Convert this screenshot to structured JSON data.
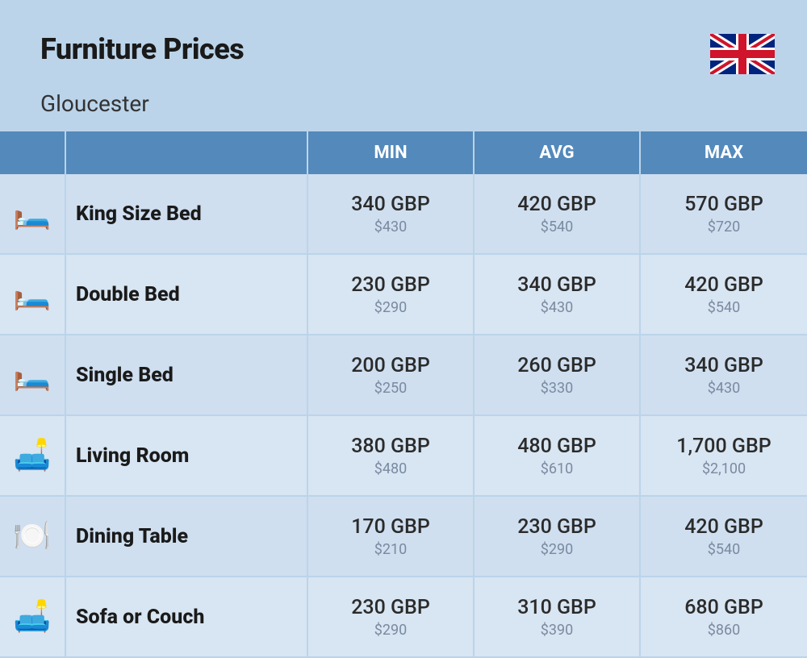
{
  "header": {
    "title": "Furniture Prices",
    "subtitle": "Gloucester"
  },
  "flag": {
    "name": "uk-flag",
    "bg": "#00247d",
    "white": "#ffffff",
    "red": "#cf142b"
  },
  "table": {
    "columns": [
      "MIN",
      "AVG",
      "MAX"
    ],
    "header_bg": "#5489bb",
    "header_text": "#ffffff",
    "row_bg_odd": "#cfdff0",
    "row_bg_even": "#d8e5f2",
    "border_color": "#bbd4ea",
    "primary_color": "#2b2b2b",
    "secondary_color": "#7a8aa0",
    "rows": [
      {
        "icon": "🛏️",
        "name": "King Size Bed",
        "min": {
          "p": "340 GBP",
          "s": "$430"
        },
        "avg": {
          "p": "420 GBP",
          "s": "$540"
        },
        "max": {
          "p": "570 GBP",
          "s": "$720"
        }
      },
      {
        "icon": "🛏️",
        "name": "Double Bed",
        "min": {
          "p": "230 GBP",
          "s": "$290"
        },
        "avg": {
          "p": "340 GBP",
          "s": "$430"
        },
        "max": {
          "p": "420 GBP",
          "s": "$540"
        }
      },
      {
        "icon": "🛏️",
        "name": "Single Bed",
        "min": {
          "p": "200 GBP",
          "s": "$250"
        },
        "avg": {
          "p": "260 GBP",
          "s": "$330"
        },
        "max": {
          "p": "340 GBP",
          "s": "$430"
        }
      },
      {
        "icon": "🛋️",
        "name": "Living Room",
        "min": {
          "p": "380 GBP",
          "s": "$480"
        },
        "avg": {
          "p": "480 GBP",
          "s": "$610"
        },
        "max": {
          "p": "1,700 GBP",
          "s": "$2,100"
        }
      },
      {
        "icon": "🍽️",
        "name": "Dining Table",
        "min": {
          "p": "170 GBP",
          "s": "$210"
        },
        "avg": {
          "p": "230 GBP",
          "s": "$290"
        },
        "max": {
          "p": "420 GBP",
          "s": "$540"
        }
      },
      {
        "icon": "🛋️",
        "name": "Sofa or Couch",
        "min": {
          "p": "230 GBP",
          "s": "$290"
        },
        "avg": {
          "p": "310 GBP",
          "s": "$390"
        },
        "max": {
          "p": "680 GBP",
          "s": "$860"
        }
      }
    ]
  }
}
